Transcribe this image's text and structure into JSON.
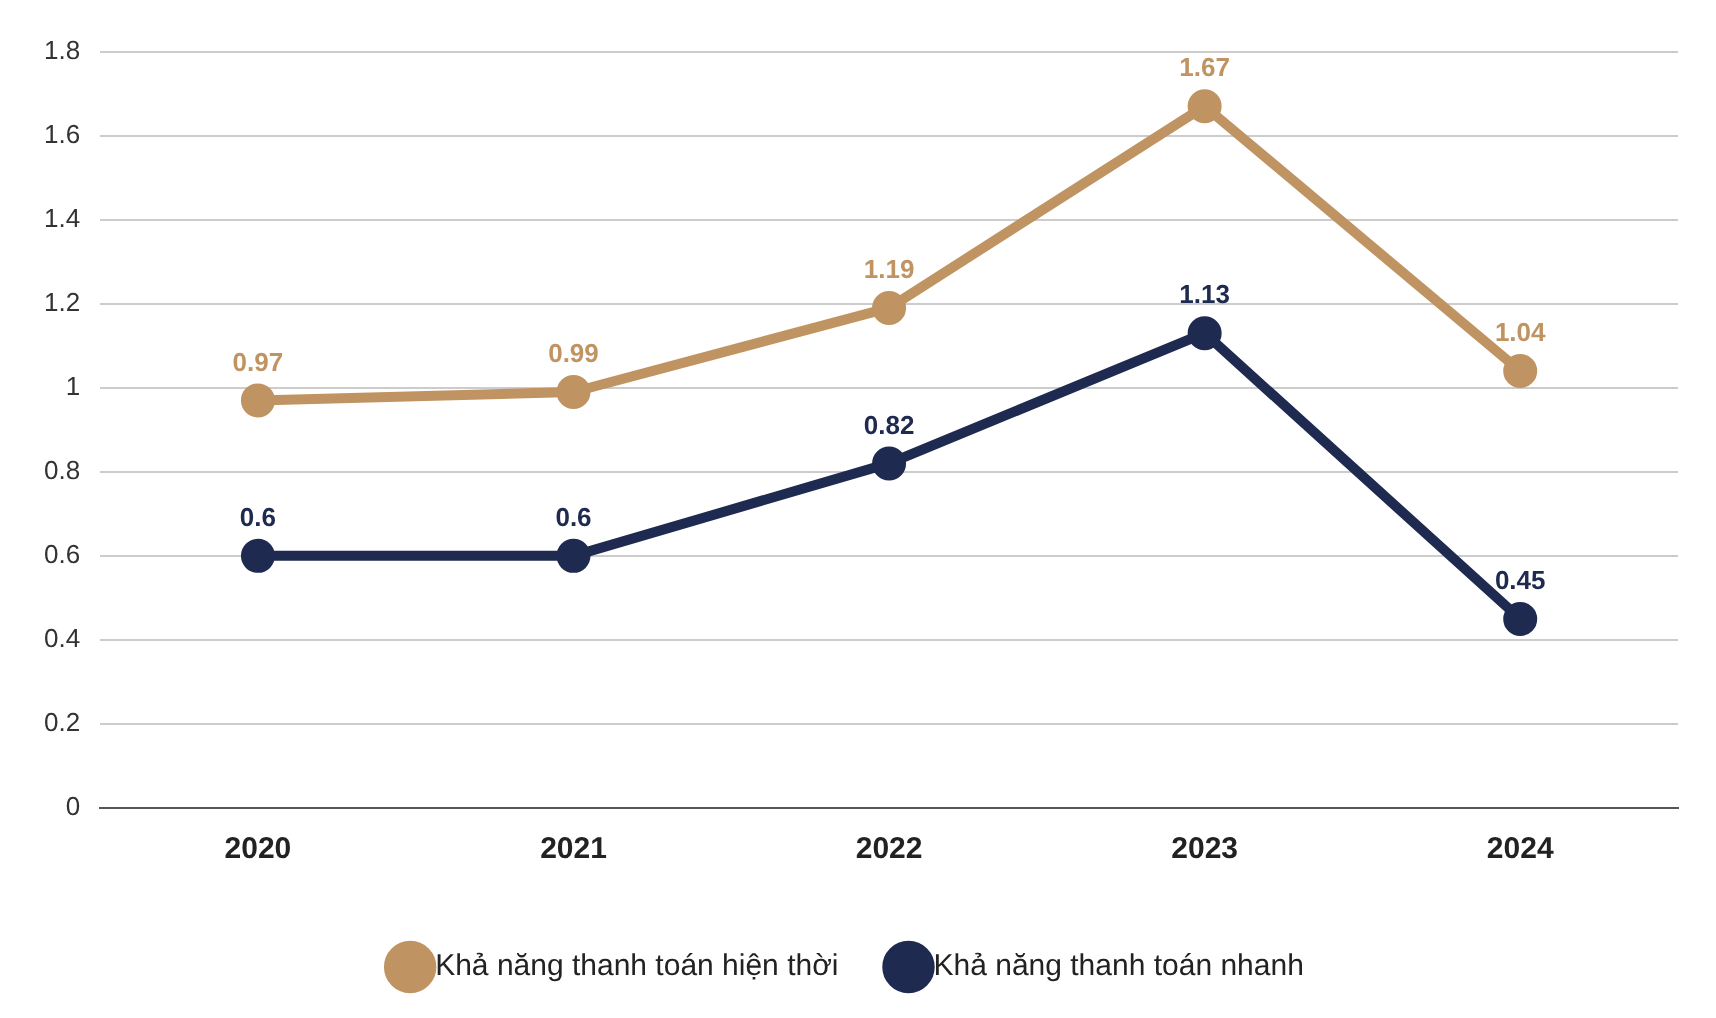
{
  "chart_data": {
    "type": "line",
    "categories": [
      "2020",
      "2021",
      "2022",
      "2023",
      "2024"
    ],
    "series": [
      {
        "name": "Khả năng thanh toán hiện thời",
        "color": "#c09462",
        "values": [
          0.97,
          0.99,
          1.19,
          1.67,
          1.04
        ]
      },
      {
        "name": "Khả năng thanh toán nhanh",
        "color": "#1f2a50",
        "values": [
          0.6,
          0.6,
          0.82,
          1.13,
          0.45
        ]
      }
    ],
    "ylim": [
      0,
      1.8
    ],
    "yticks": [
      0,
      0.2,
      0.4,
      0.6,
      0.8,
      1,
      1.2,
      1.4,
      1.6,
      1.8
    ],
    "grid": "y",
    "legend": "bottom",
    "marker": "circle",
    "line_style": "solid",
    "data_labels": true
  }
}
